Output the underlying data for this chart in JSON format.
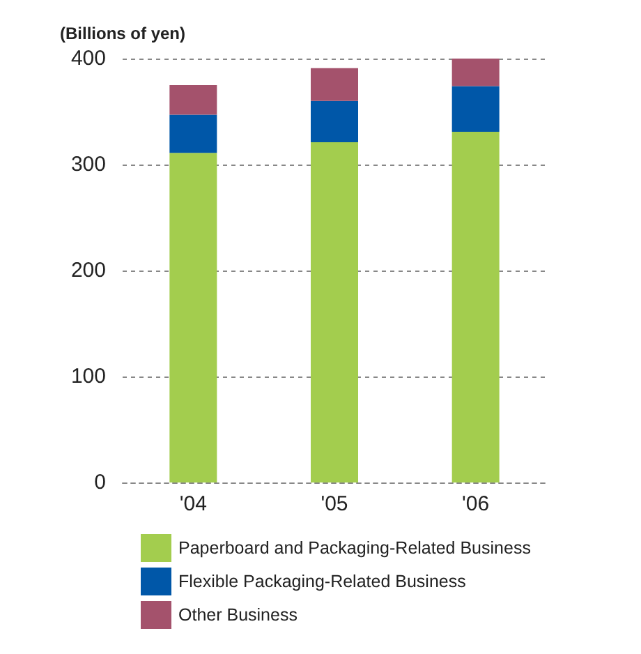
{
  "chart_data": {
    "type": "bar",
    "stacked": true,
    "ylabel": "(Billions of yen)",
    "categories": [
      "'04",
      "'05",
      "'06"
    ],
    "series": [
      {
        "name": "Paperboard and Packaging-Related Business",
        "color": "#a3cd4e",
        "values": [
          311,
          321,
          331
        ]
      },
      {
        "name": "Flexible Packaging-Related Business",
        "color": "#0057a8",
        "values": [
          36,
          39,
          43
        ]
      },
      {
        "name": "Other Business",
        "color": "#a4526c",
        "values": [
          28,
          31,
          26
        ]
      }
    ],
    "ylim": [
      0,
      400
    ],
    "yticks": [
      0,
      100,
      200,
      300,
      400
    ],
    "grid": "y",
    "legend": "bottom"
  }
}
